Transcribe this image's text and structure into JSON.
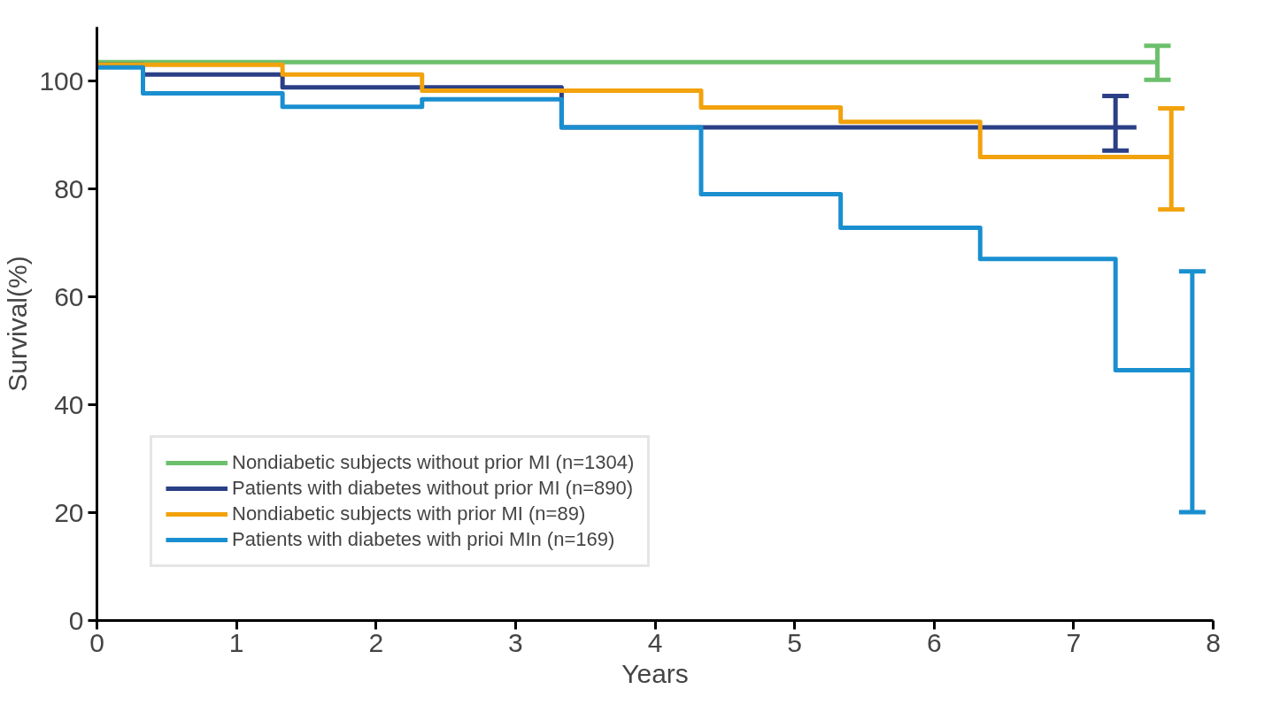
{
  "chart_data": {
    "type": "step",
    "xlabel": "Years",
    "ylabel": "Survival(%)",
    "xlim": [
      0,
      8
    ],
    "ylim": [
      0,
      110
    ],
    "xticks": [
      0,
      1,
      2,
      3,
      4,
      5,
      6,
      7,
      8
    ],
    "yticks": [
      0,
      20,
      40,
      60,
      80,
      100
    ],
    "grid": false,
    "legend": "bottom left",
    "marker": "none",
    "line_style": "solid",
    "series": [
      {
        "name": "Nondiabetic subjects without prior MI (n=1304)",
        "color": "#6cc06c",
        "x": [
          0,
          7.6
        ],
        "values": [
          103.5,
          103.5
        ],
        "errors": [
          null,
          [
            100.2,
            106.5
          ]
        ]
      },
      {
        "name": "Patients with diabetes without prior MI (n=890)",
        "color": "#2a3f85",
        "x": [
          0,
          0.33,
          1.33,
          3.33,
          7.3,
          7.45
        ],
        "values": [
          103,
          101.2,
          98.8,
          91.4,
          91.4,
          91.4
        ],
        "errors": [
          null,
          null,
          null,
          null,
          [
            87.1,
            97.2
          ],
          null
        ]
      },
      {
        "name": "Nondiabetic subjects with prior MI (n=89)",
        "color": "#f2a20c",
        "x": [
          0,
          1.33,
          2.33,
          4.33,
          5.33,
          6.33,
          7.7
        ],
        "values": [
          103,
          101.2,
          98.2,
          95.1,
          92.4,
          85.9,
          85.9
        ],
        "errors": [
          null,
          null,
          null,
          null,
          null,
          null,
          [
            76.2,
            94.9
          ]
        ]
      },
      {
        "name": "Patients with diabetes with prioi MIn (n=169)",
        "color": "#1a8fd0",
        "x": [
          0,
          0.33,
          1.33,
          2.33,
          3.33,
          4.33,
          5.33,
          6.33,
          7.3,
          7.85
        ],
        "values": [
          102.5,
          97.7,
          95.2,
          96.6,
          91.4,
          79,
          72.8,
          67,
          46.4,
          46.4
        ],
        "errors": [
          null,
          null,
          null,
          null,
          null,
          null,
          null,
          null,
          null,
          [
            20.1,
            64.7
          ]
        ]
      }
    ]
  }
}
